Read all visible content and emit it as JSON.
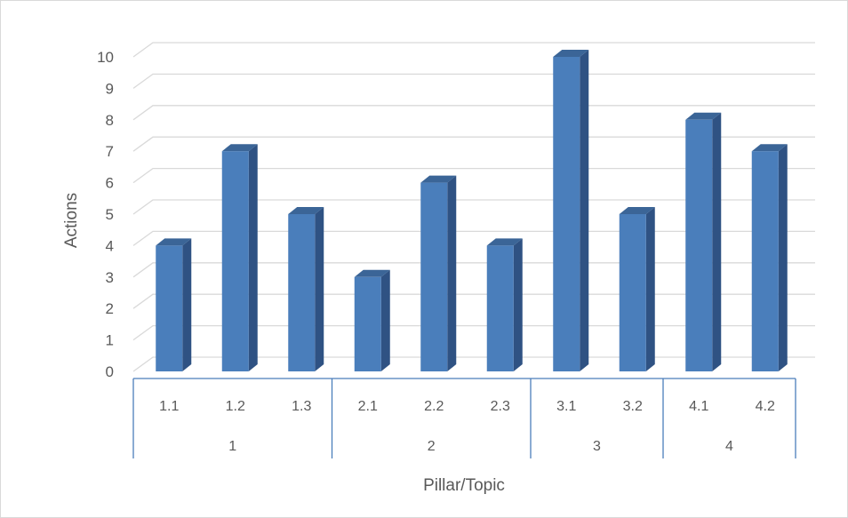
{
  "chart_data": {
    "type": "bar",
    "title": "",
    "xlabel": "Pillar/Topic",
    "ylabel": "Actions",
    "ylim": [
      0,
      10
    ],
    "yticks": [
      "0",
      "1",
      "2",
      "3",
      "4",
      "5",
      "6",
      "7",
      "8",
      "9",
      "10"
    ],
    "grid": true,
    "legend": "none",
    "bar_style": "3d-column",
    "colors": {
      "bar_front": "#4a7ebb",
      "bar_side": "#2f5283",
      "bar_top": "#3b6597",
      "grid": "#d9d9d9",
      "axis_frame": "#4a7ebb"
    },
    "groups": [
      {
        "label": "1",
        "categories": [
          "1.1",
          "1.2",
          "1.3"
        ]
      },
      {
        "label": "2",
        "categories": [
          "2.1",
          "2.2",
          "2.3"
        ]
      },
      {
        "label": "3",
        "categories": [
          "3.1",
          "3.2"
        ]
      },
      {
        "label": "4",
        "categories": [
          "4.1",
          "4.2"
        ]
      }
    ],
    "categories": [
      "1.1",
      "1.2",
      "1.3",
      "2.1",
      "2.2",
      "2.3",
      "3.1",
      "3.2",
      "4.1",
      "4.2"
    ],
    "values": [
      4,
      7,
      5,
      3,
      6,
      4,
      10,
      5,
      8,
      7
    ]
  }
}
